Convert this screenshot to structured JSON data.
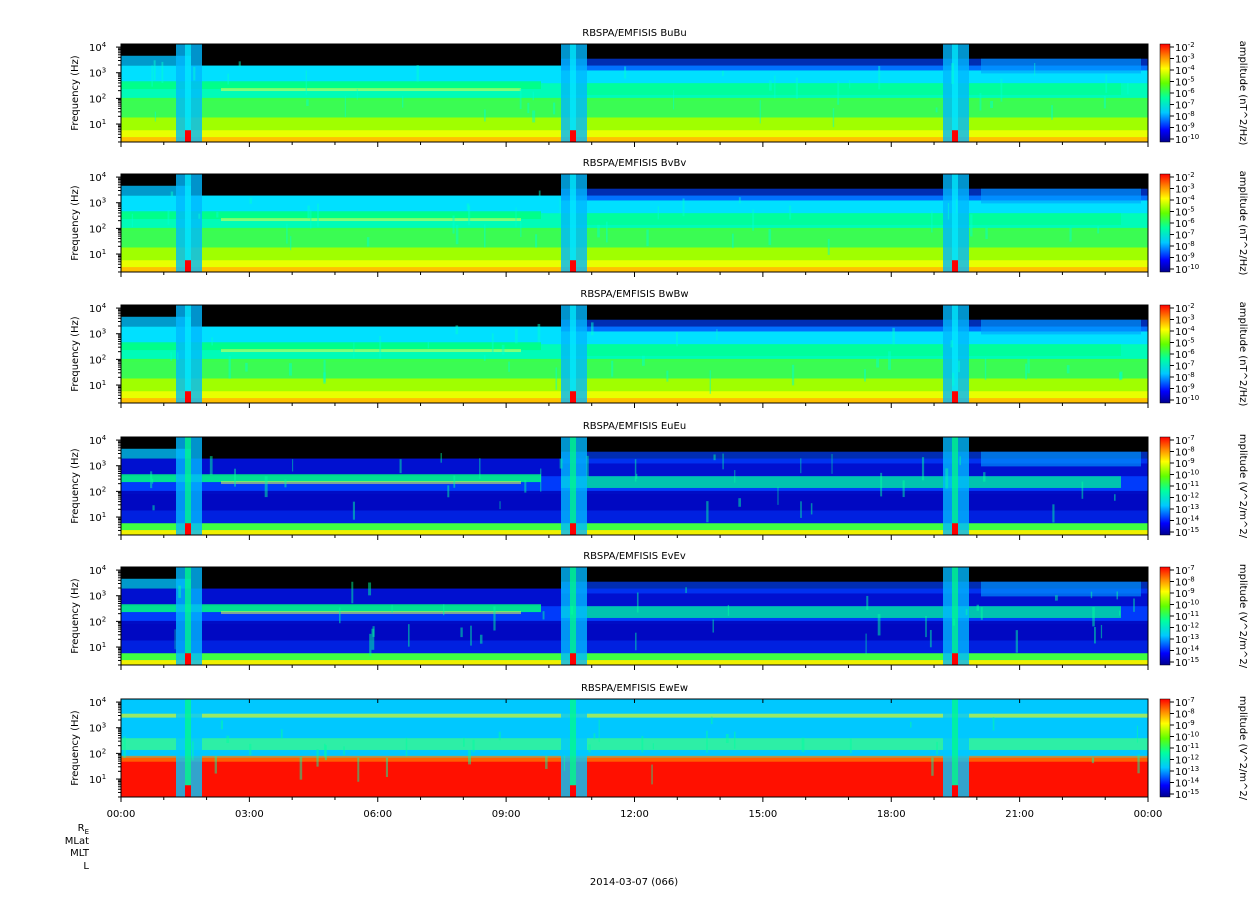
{
  "footer": {
    "date_label": "2014-03-07 (066)",
    "ephemeris_labels": [
      "R",
      "MLat",
      "MLT",
      "L"
    ],
    "ephemeris_subscript": "E"
  },
  "chart_data": [
    {
      "type": "heatmap",
      "title": "RBSPA/EMFISIS  BuBu",
      "xlabel": "",
      "ylabel": "Frequency (Hz)",
      "y_scale": "log",
      "y_ticks": [
        "10^1",
        "10^2",
        "10^3",
        "10^4"
      ],
      "x_ticks": [
        "00:00",
        "03:00",
        "06:00",
        "09:00",
        "12:00",
        "15:00",
        "18:00",
        "21:00",
        "00:00"
      ],
      "colorbar": {
        "label": "amplitude (nT^2/Hz)",
        "scale": "log",
        "ticks": [
          "10^-2",
          "10^-3",
          "10^-4",
          "10^-5",
          "10^-6",
          "10^-7",
          "10^-8",
          "10^-9",
          "10^-10"
        ]
      }
    },
    {
      "type": "heatmap",
      "title": "RBSPA/EMFISIS  BvBv",
      "xlabel": "",
      "ylabel": "Frequency (Hz)",
      "y_scale": "log",
      "y_ticks": [
        "10^1",
        "10^2",
        "10^3",
        "10^4"
      ],
      "x_ticks": [
        "00:00",
        "03:00",
        "06:00",
        "09:00",
        "12:00",
        "15:00",
        "18:00",
        "21:00",
        "00:00"
      ],
      "colorbar": {
        "label": "amplitude (nT^2/Hz)",
        "scale": "log",
        "ticks": [
          "10^-2",
          "10^-3",
          "10^-4",
          "10^-5",
          "10^-6",
          "10^-7",
          "10^-8",
          "10^-9",
          "10^-10"
        ]
      }
    },
    {
      "type": "heatmap",
      "title": "RBSPA/EMFISIS  BwBw",
      "xlabel": "",
      "ylabel": "Frequency (Hz)",
      "y_scale": "log",
      "y_ticks": [
        "10^1",
        "10^2",
        "10^3",
        "10^4"
      ],
      "x_ticks": [
        "00:00",
        "03:00",
        "06:00",
        "09:00",
        "12:00",
        "15:00",
        "18:00",
        "21:00",
        "00:00"
      ],
      "colorbar": {
        "label": "amplitude (nT^2/Hz)",
        "scale": "log",
        "ticks": [
          "10^-2",
          "10^-3",
          "10^-4",
          "10^-5",
          "10^-6",
          "10^-7",
          "10^-8",
          "10^-9",
          "10^-10"
        ]
      }
    },
    {
      "type": "heatmap",
      "title": "RBSPA/EMFISIS  EuEu",
      "xlabel": "",
      "ylabel": "Frequency (Hz)",
      "y_scale": "log",
      "y_ticks": [
        "10^1",
        "10^2",
        "10^3",
        "10^4"
      ],
      "x_ticks": [
        "00:00",
        "03:00",
        "06:00",
        "09:00",
        "12:00",
        "15:00",
        "18:00",
        "21:00",
        "00:00"
      ],
      "colorbar": {
        "label": "mplitude (V^2/m^2/",
        "scale": "log",
        "ticks": [
          "10^-7",
          "10^-8",
          "10^-9",
          "10^-10",
          "10^-11",
          "10^-12",
          "10^-13",
          "10^-14",
          "10^-15"
        ]
      }
    },
    {
      "type": "heatmap",
      "title": "RBSPA/EMFISIS  EvEv",
      "xlabel": "",
      "ylabel": "Frequency (Hz)",
      "y_scale": "log",
      "y_ticks": [
        "10^1",
        "10^2",
        "10^3",
        "10^4"
      ],
      "x_ticks": [
        "00:00",
        "03:00",
        "06:00",
        "09:00",
        "12:00",
        "15:00",
        "18:00",
        "21:00",
        "00:00"
      ],
      "colorbar": {
        "label": "mplitude (V^2/m^2/",
        "scale": "log",
        "ticks": [
          "10^-7",
          "10^-8",
          "10^-9",
          "10^-10",
          "10^-11",
          "10^-12",
          "10^-13",
          "10^-14",
          "10^-15"
        ]
      }
    },
    {
      "type": "heatmap",
      "title": "RBSPA/EMFISIS  EwEw",
      "xlabel": "",
      "ylabel": "Frequency (Hz)",
      "y_scale": "log",
      "y_ticks": [
        "10^1",
        "10^2",
        "10^3",
        "10^4"
      ],
      "x_ticks": [
        "00:00",
        "03:00",
        "06:00",
        "09:00",
        "12:00",
        "15:00",
        "18:00",
        "21:00",
        "00:00"
      ],
      "colorbar": {
        "label": "mplitude (V^2/m^2/",
        "scale": "log",
        "ticks": [
          "10^-7",
          "10^-8",
          "10^-9",
          "10^-10",
          "10^-11",
          "10^-12",
          "10^-13",
          "10^-14",
          "10^-15"
        ]
      }
    }
  ]
}
